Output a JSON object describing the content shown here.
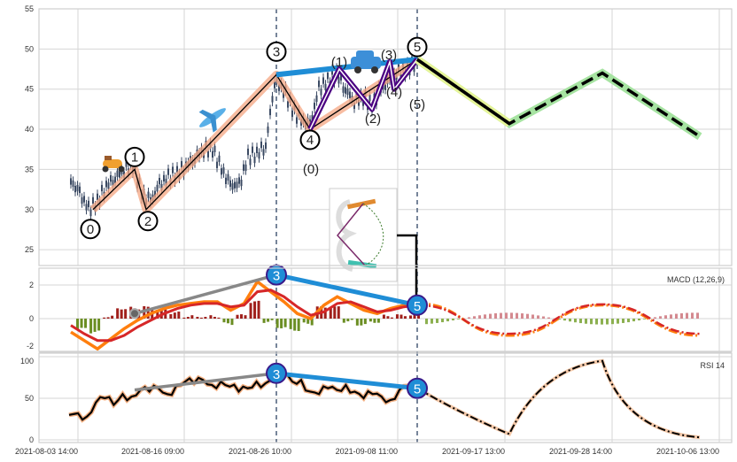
{
  "chart_data": {
    "type": "line",
    "x_ticks": [
      "2021-08-03 14:00",
      "2021-08-16 09:00",
      "2021-08-26 10:00",
      "2021-09-08 11:00",
      "2021-09-17 13:00",
      "2021-09-28 14:00",
      "2021-10-06 13:00"
    ],
    "price_panel": {
      "ylim": [
        25,
        55
      ],
      "y_ticks": [
        "55",
        "50",
        "45",
        "40",
        "35",
        "30",
        "25"
      ],
      "close": [
        33.5,
        32,
        30,
        31,
        33,
        34,
        35,
        35.5,
        32,
        31,
        33,
        34,
        34.5,
        35.5,
        36.5,
        37.5,
        37.5,
        35,
        33,
        33,
        36.5,
        37,
        38,
        46,
        45,
        42.5,
        41,
        40.5,
        45,
        46,
        47,
        45,
        43.5,
        44,
        43,
        45,
        46,
        47,
        47.5,
        48.5
      ],
      "wave_points": [
        {
          "label": "0",
          "t": 2.5,
          "v": 30
        },
        {
          "label": "1",
          "t": 7.2,
          "v": 35
        },
        {
          "label": "2",
          "t": 8.5,
          "v": 30
        },
        {
          "label": "3",
          "t": 23.2,
          "v": 46.8
        },
        {
          "label": "4",
          "t": 27,
          "v": 40
        },
        {
          "label": "5",
          "t": 39.1,
          "v": 48.7
        }
      ],
      "subwave_points": [
        {
          "label": "(0)",
          "t": 27,
          "v": 40
        },
        {
          "label": "(1)",
          "t": 30.3,
          "v": 47.5
        },
        {
          "label": "(2)",
          "t": 34,
          "v": 42.5
        },
        {
          "label": "(3)",
          "t": 36,
          "v": 48.4
        },
        {
          "label": "(4)",
          "t": 36.5,
          "v": 45
        },
        {
          "label": "(5)",
          "t": 39.1,
          "v": 48.7
        }
      ],
      "projection": [
        {
          "t": 39.1,
          "v": 48.7
        },
        {
          "t": 49.5,
          "v": 40.7
        },
        {
          "t": 60,
          "v": 47
        },
        {
          "t": 71,
          "v": 39.1
        }
      ]
    },
    "macd_panel": {
      "title": "MACD (12,26,9)",
      "ylim": [
        -2,
        2.8
      ],
      "y_ticks": [
        "2",
        "0",
        "-2"
      ],
      "macd": [
        -0.8,
        -1.3,
        -1.8,
        -1.2,
        -0.6,
        -0.1,
        0.3,
        0.6,
        0.8,
        0.9,
        1.0,
        1.0,
        0.5,
        0.9,
        2.2,
        1.6,
        1.0,
        0.3,
        0,
        0.8,
        1.3,
        0.9,
        0.5,
        0.3,
        0.6,
        0.8,
        0.9
      ],
      "signal": [
        -0.4,
        -0.9,
        -1.3,
        -1.3,
        -1.0,
        -0.5,
        -0.1,
        0.3,
        0.6,
        0.8,
        0.9,
        0.9,
        0.7,
        0.8,
        1.6,
        1.7,
        1.3,
        0.7,
        0.2,
        0.4,
        0.9,
        1.0,
        0.7,
        0.4,
        0.5,
        0.7,
        0.8
      ],
      "projection_macd": [
        0.9,
        -1.0,
        0.8,
        -1.0
      ],
      "projection_signal": [
        0.8,
        -0.9,
        0.85,
        -0.9
      ]
    },
    "rsi_panel": {
      "title": "RSI 14",
      "ylim": [
        0,
        100
      ],
      "y_ticks": [
        "100",
        "50",
        "0"
      ],
      "rsi": [
        30,
        32,
        28,
        45,
        50,
        42,
        55,
        52,
        60,
        58,
        62,
        55,
        65,
        70,
        68,
        72,
        66,
        70,
        64,
        58,
        62,
        70,
        68,
        75,
        78,
        70,
        72,
        58,
        55,
        62,
        60,
        66,
        58,
        50,
        55,
        52,
        48,
        60,
        65,
        62
      ],
      "projection": [
        62,
        7,
        95,
        3
      ]
    },
    "labels": {
      "wave_3": "3",
      "wave_5": "5"
    }
  },
  "colors": {
    "wave": "#f4a582",
    "projection_head": "#e6f598",
    "projection_tail": "#a6e3a1",
    "blue": "#1f8dd6",
    "purple": "#4b0082",
    "macd": "#ff7f0e",
    "signal": "#d62728"
  }
}
